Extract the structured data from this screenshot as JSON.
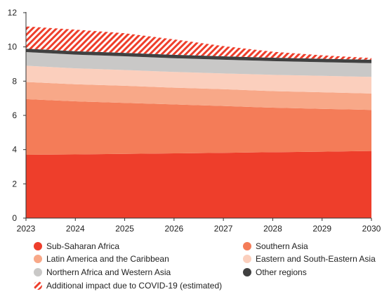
{
  "chart_data": {
    "type": "area",
    "stacked": true,
    "title": "",
    "xlabel": "",
    "ylabel": "",
    "x": [
      2023,
      2024,
      2025,
      2026,
      2027,
      2028,
      2029,
      2030
    ],
    "ylim": [
      0,
      12
    ],
    "yticks": [
      0,
      2,
      4,
      6,
      8,
      10,
      12
    ],
    "grid": false,
    "legend_position": "bottom",
    "series": [
      {
        "name": "Sub-Saharan Africa",
        "color": "#ee3e2b",
        "values": [
          3.7,
          3.72,
          3.75,
          3.78,
          3.81,
          3.85,
          3.88,
          3.92
        ]
      },
      {
        "name": "Southern Asia",
        "color": "#f47c58",
        "values": [
          3.25,
          3.1,
          2.98,
          2.86,
          2.74,
          2.6,
          2.5,
          2.4
        ]
      },
      {
        "name": "Latin America and the Caribbean",
        "color": "#f8a888",
        "values": [
          1.0,
          1.0,
          1.0,
          0.98,
          0.98,
          0.97,
          0.97,
          0.96
        ]
      },
      {
        "name": "Eastern and South-Eastern Asia",
        "color": "#fbcfbd",
        "values": [
          0.95,
          0.93,
          0.92,
          0.92,
          0.92,
          0.95,
          0.96,
          0.97
        ]
      },
      {
        "name": "Northern Africa and Western Asia",
        "color": "#c9c8c7",
        "values": [
          0.8,
          0.8,
          0.8,
          0.8,
          0.8,
          0.8,
          0.8,
          0.8
        ]
      },
      {
        "name": "Other regions",
        "color": "#404040",
        "values": [
          0.2,
          0.2,
          0.2,
          0.2,
          0.2,
          0.2,
          0.2,
          0.2
        ]
      },
      {
        "name": "Additional impact due to COVID-19 (estimated)",
        "color": "#ee3e2b",
        "pattern": "diagonal-hatch",
        "values": [
          1.3,
          1.26,
          1.15,
          0.9,
          0.6,
          0.35,
          0.2,
          0.1
        ]
      }
    ]
  },
  "legend": [
    {
      "label": "Sub-Saharan Africa",
      "color": "#ee3e2b"
    },
    {
      "label": "Southern Asia",
      "color": "#f47c58"
    },
    {
      "label": "Latin America and the Caribbean",
      "color": "#f8a888"
    },
    {
      "label": "Eastern and South-Eastern Asia",
      "color": "#fbcfbd"
    },
    {
      "label": "Northern Africa and Western Asia",
      "color": "#c9c8c7"
    },
    {
      "label": "Other regions",
      "color": "#404040"
    },
    {
      "label": "Additional impact due to COVID-19 (estimated)",
      "color": "#ee3e2b",
      "pattern": "diagonal-hatch"
    }
  ]
}
